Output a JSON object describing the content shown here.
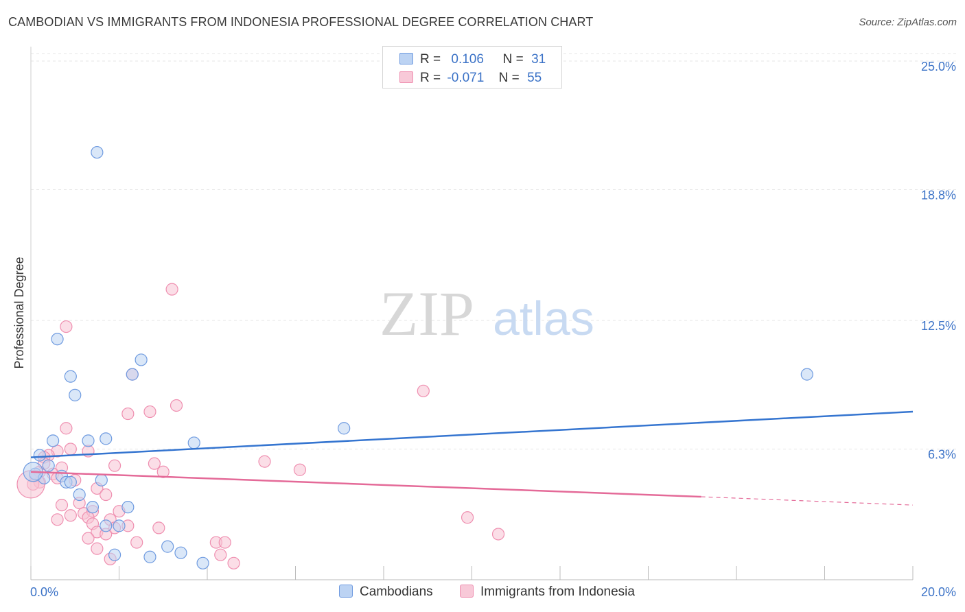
{
  "header": {
    "title": "CAMBODIAN VS IMMIGRANTS FROM INDONESIA PROFESSIONAL DEGREE CORRELATION CHART",
    "source": "Source: ZipAtlas.com"
  },
  "legend": {
    "r_label": "R =",
    "n_label": "N =",
    "rows": [
      {
        "r": "0.106",
        "n": "31"
      },
      {
        "r": "-0.071",
        "n": "55"
      }
    ]
  },
  "watermark": {
    "part1": "ZIP",
    "part2": "atlas"
  },
  "chart_data": {
    "type": "scatter",
    "ylabel": "Professional Degree",
    "xlim": [
      0,
      20
    ],
    "ylim": [
      0,
      25
    ],
    "x_tick_labels": [
      "0.0%",
      "20.0%"
    ],
    "y_ticks": [
      6.3,
      12.5,
      18.8,
      25.0
    ],
    "y_tick_labels": [
      "6.3%",
      "12.5%",
      "18.8%",
      "25.0%"
    ],
    "grid": true,
    "colors": {
      "cambodians": "#6f9be0",
      "indonesia": "#ef8fb0",
      "blue_line": "#3575d0",
      "pink_line": "#e46a98"
    },
    "series": [
      {
        "name": "Cambodians",
        "color": "#6f9be0",
        "trend": {
          "x0": 0,
          "y0": 5.9,
          "x1": 20,
          "y1": 8.1,
          "dashed_from": 20
        },
        "points": [
          [
            1.5,
            20.6
          ],
          [
            0.6,
            11.6
          ],
          [
            2.5,
            10.6
          ],
          [
            0.9,
            9.8
          ],
          [
            2.3,
            9.9
          ],
          [
            1.0,
            8.9
          ],
          [
            17.6,
            9.9
          ],
          [
            7.1,
            7.3
          ],
          [
            1.7,
            6.8
          ],
          [
            1.3,
            6.7
          ],
          [
            3.7,
            6.6
          ],
          [
            0.5,
            6.7
          ],
          [
            0.2,
            6.0
          ],
          [
            0.4,
            5.5
          ],
          [
            0.7,
            5.0
          ],
          [
            0.1,
            5.1
          ],
          [
            0.3,
            4.9
          ],
          [
            0.8,
            4.7
          ],
          [
            0.9,
            4.7
          ],
          [
            1.6,
            4.8
          ],
          [
            1.1,
            4.1
          ],
          [
            1.4,
            3.5
          ],
          [
            2.2,
            3.5
          ],
          [
            1.7,
            2.6
          ],
          [
            2.0,
            2.6
          ],
          [
            1.9,
            1.2
          ],
          [
            2.7,
            1.1
          ],
          [
            3.1,
            1.6
          ],
          [
            3.4,
            1.3
          ],
          [
            3.9,
            0.8
          ],
          [
            0.05,
            5.2
          ]
        ]
      },
      {
        "name": "Immigrants from Indonesia",
        "color": "#ef8fb0",
        "trend": {
          "x0": 0,
          "y0": 5.2,
          "x1": 15.2,
          "y1": 4.0,
          "x2": 20,
          "y2": 3.6,
          "dashed_from": 15.2
        },
        "points": [
          [
            3.2,
            14.0
          ],
          [
            0.8,
            12.2
          ],
          [
            2.3,
            9.9
          ],
          [
            8.9,
            9.1
          ],
          [
            3.3,
            8.4
          ],
          [
            2.7,
            8.1
          ],
          [
            2.2,
            8.0
          ],
          [
            0.8,
            7.3
          ],
          [
            0.9,
            6.3
          ],
          [
            1.3,
            6.2
          ],
          [
            0.6,
            6.2
          ],
          [
            0.4,
            6.0
          ],
          [
            0.3,
            5.9
          ],
          [
            0.7,
            5.4
          ],
          [
            2.8,
            5.6
          ],
          [
            5.3,
            5.7
          ],
          [
            6.1,
            5.3
          ],
          [
            0.2,
            5.2
          ],
          [
            0.5,
            5.1
          ],
          [
            1.9,
            5.5
          ],
          [
            3.0,
            5.2
          ],
          [
            0.1,
            5.0
          ],
          [
            0.6,
            4.9
          ],
          [
            0.2,
            4.7
          ],
          [
            1.0,
            4.8
          ],
          [
            1.5,
            4.4
          ],
          [
            0.05,
            4.6
          ],
          [
            1.7,
            4.1
          ],
          [
            1.1,
            3.7
          ],
          [
            0.7,
            3.6
          ],
          [
            1.2,
            3.2
          ],
          [
            0.9,
            3.1
          ],
          [
            1.4,
            3.3
          ],
          [
            1.3,
            3.0
          ],
          [
            2.0,
            3.3
          ],
          [
            0.6,
            2.9
          ],
          [
            1.8,
            2.9
          ],
          [
            2.2,
            2.6
          ],
          [
            1.4,
            2.7
          ],
          [
            1.5,
            2.3
          ],
          [
            1.7,
            2.2
          ],
          [
            1.9,
            2.5
          ],
          [
            1.3,
            2.0
          ],
          [
            2.9,
            2.5
          ],
          [
            4.2,
            1.8
          ],
          [
            4.4,
            1.8
          ],
          [
            1.5,
            1.5
          ],
          [
            2.4,
            1.8
          ],
          [
            4.3,
            1.2
          ],
          [
            4.6,
            0.8
          ],
          [
            9.9,
            3.0
          ],
          [
            10.6,
            2.2
          ],
          [
            1.8,
            1.0
          ],
          [
            0.0,
            4.6
          ],
          [
            0.3,
            5.6
          ]
        ]
      }
    ]
  },
  "bottom_legend": [
    {
      "label": "Cambodians"
    },
    {
      "label": "Immigrants from Indonesia"
    }
  ]
}
